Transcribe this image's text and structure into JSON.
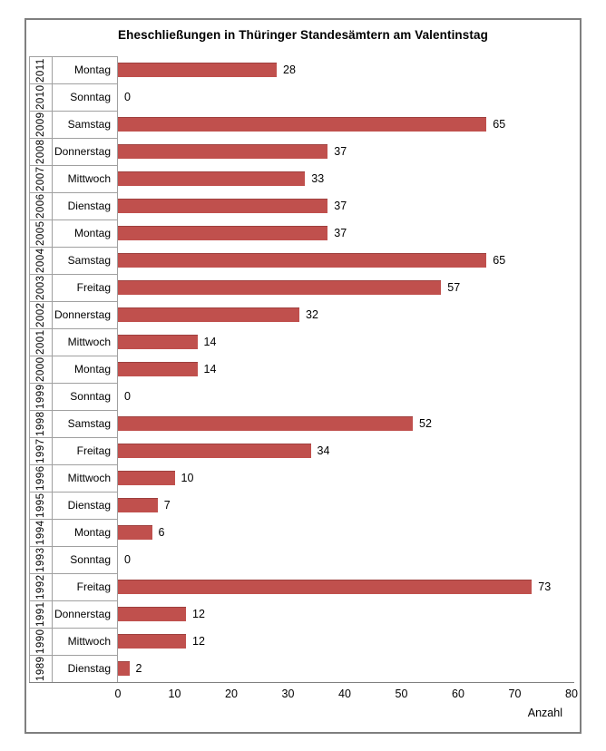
{
  "chart_data": {
    "type": "bar",
    "orientation": "horizontal",
    "title": "Eheschließungen in Thüringer Standesämtern am Valentinstag",
    "xlabel": "Anzahl",
    "xlim": [
      0,
      80
    ],
    "x_ticks": [
      "0",
      "10",
      "20",
      "30",
      "40",
      "50",
      "60",
      "70",
      "80"
    ],
    "grid": false,
    "legend": false,
    "bar_color": "#C0504D",
    "bar_edge_color": "#9E403E",
    "value_labels_shown": true,
    "rows": [
      {
        "year": "2011",
        "weekday": "Montag",
        "value": 28
      },
      {
        "year": "2010",
        "weekday": "Sonntag",
        "value": 0
      },
      {
        "year": "2009",
        "weekday": "Samstag",
        "value": 65
      },
      {
        "year": "2008",
        "weekday": "Donnerstag",
        "value": 37
      },
      {
        "year": "2007",
        "weekday": "Mittwoch",
        "value": 33
      },
      {
        "year": "2006",
        "weekday": "Dienstag",
        "value": 37
      },
      {
        "year": "2005",
        "weekday": "Montag",
        "value": 37
      },
      {
        "year": "2004",
        "weekday": "Samstag",
        "value": 65
      },
      {
        "year": "2003",
        "weekday": "Freitag",
        "value": 57
      },
      {
        "year": "2002",
        "weekday": "Donnerstag",
        "value": 32
      },
      {
        "year": "2001",
        "weekday": "Mittwoch",
        "value": 14
      },
      {
        "year": "2000",
        "weekday": "Montag",
        "value": 14
      },
      {
        "year": "1999",
        "weekday": "Sonntag",
        "value": 0
      },
      {
        "year": "1998",
        "weekday": "Samstag",
        "value": 52
      },
      {
        "year": "1997",
        "weekday": "Freitag",
        "value": 34
      },
      {
        "year": "1996",
        "weekday": "Mittwoch",
        "value": 10
      },
      {
        "year": "1995",
        "weekday": "Dienstag",
        "value": 7
      },
      {
        "year": "1994",
        "weekday": "Montag",
        "value": 6
      },
      {
        "year": "1993",
        "weekday": "Sonntag",
        "value": 0
      },
      {
        "year": "1992",
        "weekday": "Freitag",
        "value": 73
      },
      {
        "year": "1991",
        "weekday": "Donnerstag",
        "value": 12
      },
      {
        "year": "1990",
        "weekday": "Mittwoch",
        "value": 12
      },
      {
        "year": "1989",
        "weekday": "Dienstag",
        "value": 2
      }
    ]
  }
}
